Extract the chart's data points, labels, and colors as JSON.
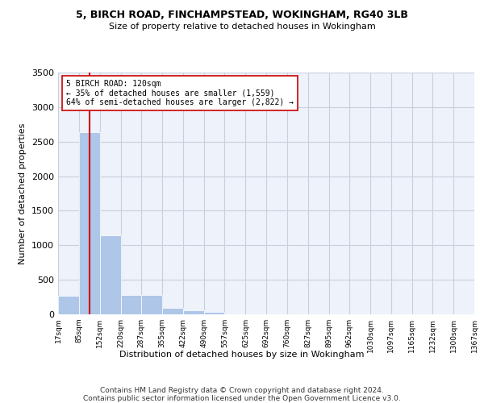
{
  "title1": "5, BIRCH ROAD, FINCHAMPSTEAD, WOKINGHAM, RG40 3LB",
  "title2": "Size of property relative to detached houses in Wokingham",
  "xlabel": "Distribution of detached houses by size in Wokingham",
  "ylabel": "Number of detached properties",
  "footnote1": "Contains HM Land Registry data © Crown copyright and database right 2024.",
  "footnote2": "Contains public sector information licensed under the Open Government Licence v3.0.",
  "property_size": 120,
  "annotation_line1": "5 BIRCH ROAD: 120sqm",
  "annotation_line2": "← 35% of detached houses are smaller (1,559)",
  "annotation_line3": "64% of semi-detached houses are larger (2,822) →",
  "bar_color": "#aec6e8",
  "vline_color": "#cc0000",
  "grid_color": "#c8d0e0",
  "bg_color": "#eef2fa",
  "bins": [
    17,
    85,
    152,
    220,
    287,
    355,
    422,
    490,
    557,
    625,
    692,
    760,
    827,
    895,
    962,
    1030,
    1097,
    1165,
    1232,
    1300,
    1367
  ],
  "bin_labels": [
    "17sqm",
    "85sqm",
    "152sqm",
    "220sqm",
    "287sqm",
    "355sqm",
    "422sqm",
    "490sqm",
    "557sqm",
    "625sqm",
    "692sqm",
    "760sqm",
    "827sqm",
    "895sqm",
    "962sqm",
    "1030sqm",
    "1097sqm",
    "1165sqm",
    "1232sqm",
    "1300sqm",
    "1367sqm"
  ],
  "bar_heights": [
    270,
    2640,
    1140,
    280,
    280,
    95,
    60,
    35,
    0,
    0,
    0,
    0,
    0,
    0,
    0,
    0,
    0,
    0,
    0,
    0
  ],
  "ylim": [
    0,
    3500
  ],
  "yticks": [
    0,
    500,
    1000,
    1500,
    2000,
    2500,
    3000,
    3500
  ]
}
